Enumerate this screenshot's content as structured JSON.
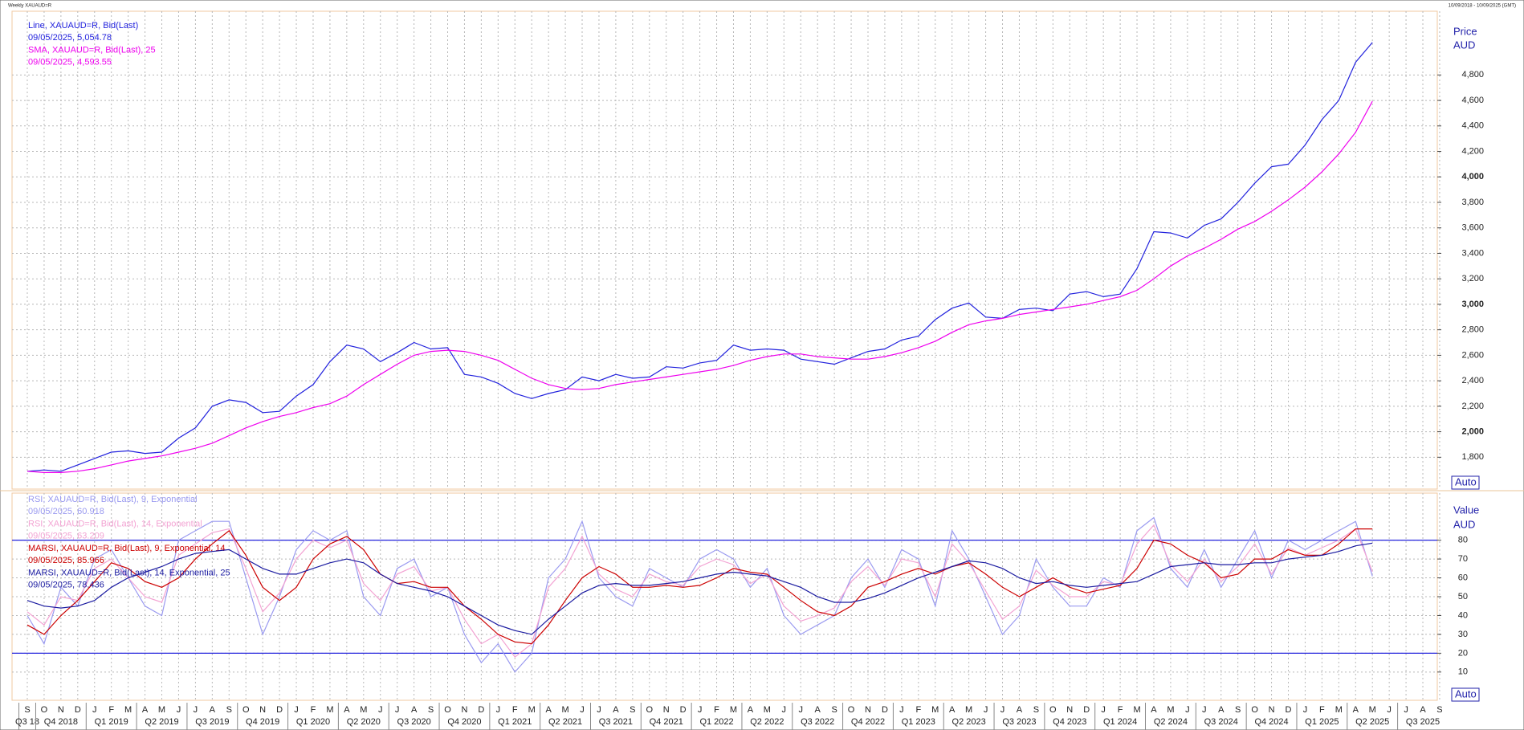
{
  "header": {
    "title": "Weekly XAUAUD=R",
    "range": "10/09/2018 - 10/09/2025 (GMT)"
  },
  "chart_data": {
    "type": "line",
    "y_axis_labels": [
      "Price",
      "AUD",
      "Auto"
    ],
    "y2_axis_labels": [
      "Value",
      "AUD",
      "Auto"
    ],
    "categories": [
      "S",
      "O",
      "N",
      "D",
      "J",
      "F",
      "M",
      "A",
      "M",
      "J",
      "J",
      "A",
      "S",
      "O",
      "N",
      "D",
      "J",
      "F",
      "M",
      "A",
      "M",
      "J",
      "J",
      "A",
      "S",
      "O",
      "N",
      "D",
      "J",
      "F",
      "M",
      "A",
      "M",
      "J",
      "J",
      "A",
      "S",
      "O",
      "N",
      "D",
      "J",
      "F",
      "M",
      "A",
      "M",
      "J",
      "J",
      "A",
      "S",
      "O",
      "N",
      "D",
      "J",
      "F",
      "M",
      "A",
      "M",
      "J",
      "J",
      "A",
      "S",
      "O",
      "N",
      "D",
      "J",
      "F",
      "M",
      "A",
      "M",
      "J",
      "J",
      "A",
      "S",
      "O",
      "N",
      "D",
      "J",
      "F",
      "M",
      "A",
      "M",
      "J",
      "J",
      "A",
      "S"
    ],
    "quarters": [
      "Q3 18",
      "Q4 2018",
      "Q1 2019",
      "Q2 2019",
      "Q3 2019",
      "Q4 2019",
      "Q1 2020",
      "Q2 2020",
      "Q3 2020",
      "Q4 2020",
      "Q1 2021",
      "Q2 2021",
      "Q3 2021",
      "Q4 2021",
      "Q1 2022",
      "Q2 2022",
      "Q3 2022",
      "Q4 2022",
      "Q1 2023",
      "Q2 2023",
      "Q3 2023",
      "Q4 2023",
      "Q1 2024",
      "Q2 2024",
      "Q3 2024",
      "Q4 2024",
      "Q1 2025",
      "Q2 2025",
      "Q3 2025"
    ],
    "ylim": [
      1550,
      5300
    ],
    "yticks": [
      {
        "value": 1800,
        "label": "1,800"
      },
      {
        "value": 2000,
        "label": "2,000"
      },
      {
        "value": 2200,
        "label": "2,200"
      },
      {
        "value": 2400,
        "label": "2,400"
      },
      {
        "value": 2600,
        "label": "2,600"
      },
      {
        "value": 2800,
        "label": "2,800"
      },
      {
        "value": 3000,
        "label": "3,000"
      },
      {
        "value": 3200,
        "label": "3,200"
      },
      {
        "value": 3400,
        "label": "3,400"
      },
      {
        "value": 3600,
        "label": "3,600"
      },
      {
        "value": 3800,
        "label": "3,800"
      },
      {
        "value": 4000,
        "label": "4,000"
      },
      {
        "value": 4200,
        "label": "4,200"
      },
      {
        "value": 4400,
        "label": "4,400"
      },
      {
        "value": 4600,
        "label": "4,600"
      },
      {
        "value": 4800,
        "label": "4,800"
      }
    ],
    "y2lim": [
      -5,
      105
    ],
    "y2ticks": [
      10,
      20,
      30,
      40,
      50,
      60,
      70,
      80
    ],
    "y2_lines": [
      80,
      20
    ],
    "grid": true,
    "series": [
      {
        "name": "Line, XAUAUD=R, Bid(Last)",
        "last_label": "09/05/2025, 5,054.78",
        "color": "#2222dd",
        "values": [
          1690,
          1700,
          1690,
          1740,
          1790,
          1840,
          1850,
          1830,
          1840,
          1950,
          2030,
          2200,
          2250,
          2230,
          2150,
          2160,
          2280,
          2370,
          2550,
          2680,
          2650,
          2550,
          2620,
          2700,
          2650,
          2660,
          2450,
          2430,
          2380,
          2300,
          2260,
          2300,
          2330,
          2430,
          2400,
          2450,
          2420,
          2430,
          2510,
          2500,
          2540,
          2560,
          2680,
          2640,
          2650,
          2640,
          2570,
          2550,
          2530,
          2580,
          2630,
          2650,
          2720,
          2750,
          2880,
          2970,
          3010,
          2900,
          2890,
          2960,
          2970,
          2950,
          3080,
          3100,
          3060,
          3080,
          3280,
          3570,
          3560,
          3520,
          3620,
          3670,
          3800,
          3950,
          4080,
          4100,
          4250,
          4450,
          4600,
          4900,
          5054.78,
          null,
          null,
          null,
          null
        ]
      },
      {
        "name": "SMA, XAUAUD=R, Bid(Last),  25",
        "last_label": "09/05/2025, 4,593.55",
        "color": "#ee00ee",
        "values": [
          1690,
          1680,
          1680,
          1690,
          1710,
          1740,
          1770,
          1790,
          1810,
          1840,
          1870,
          1910,
          1970,
          2030,
          2080,
          2120,
          2150,
          2190,
          2220,
          2280,
          2370,
          2450,
          2530,
          2600,
          2630,
          2640,
          2630,
          2600,
          2560,
          2490,
          2420,
          2370,
          2340,
          2330,
          2340,
          2370,
          2390,
          2410,
          2430,
          2450,
          2470,
          2490,
          2520,
          2560,
          2590,
          2610,
          2610,
          2590,
          2580,
          2570,
          2570,
          2590,
          2620,
          2660,
          2710,
          2780,
          2840,
          2870,
          2890,
          2920,
          2940,
          2960,
          2980,
          3000,
          3030,
          3060,
          3110,
          3200,
          3300,
          3380,
          3440,
          3510,
          3590,
          3650,
          3730,
          3820,
          3920,
          4040,
          4180,
          4350,
          4593.55,
          null,
          null,
          null,
          null
        ]
      },
      {
        "name": "RSI, XAUAUD=R, Bid(Last),  9, Exponential",
        "last_label": "09/05/2025, 60.918",
        "color": "#9a9af0",
        "axis": "y2",
        "values": [
          40,
          25,
          55,
          45,
          70,
          75,
          60,
          45,
          40,
          80,
          85,
          90,
          90,
          60,
          30,
          50,
          75,
          85,
          80,
          85,
          50,
          40,
          65,
          70,
          50,
          55,
          30,
          15,
          25,
          10,
          20,
          60,
          70,
          90,
          60,
          50,
          45,
          65,
          60,
          55,
          70,
          75,
          70,
          55,
          65,
          40,
          30,
          35,
          40,
          60,
          70,
          55,
          75,
          70,
          45,
          85,
          70,
          50,
          30,
          40,
          70,
          55,
          45,
          45,
          60,
          55,
          85,
          92,
          65,
          55,
          75,
          55,
          70,
          85,
          60,
          80,
          75,
          80,
          85,
          90,
          60.918,
          null,
          null,
          null,
          null
        ]
      },
      {
        "name": "RSI, XAUAUD=R, Bid(Last),  14, Exponential",
        "last_label": "09/05/2025, 63.209",
        "color": "#f3a3d3",
        "axis": "y2",
        "values": [
          42,
          35,
          50,
          48,
          65,
          70,
          60,
          50,
          47,
          72,
          78,
          84,
          86,
          65,
          42,
          52,
          70,
          80,
          76,
          80,
          57,
          48,
          62,
          66,
          53,
          55,
          38,
          25,
          30,
          18,
          25,
          55,
          65,
          82,
          62,
          54,
          50,
          62,
          58,
          56,
          66,
          70,
          67,
          57,
          62,
          45,
          37,
          40,
          44,
          58,
          66,
          56,
          70,
          68,
          50,
          78,
          68,
          53,
          38,
          45,
          64,
          56,
          50,
          50,
          58,
          56,
          78,
          88,
          67,
          58,
          70,
          58,
          66,
          78,
          62,
          76,
          72,
          76,
          80,
          86,
          63.209,
          null,
          null,
          null,
          null
        ]
      },
      {
        "name": "MARSI, XAUAUD=R, Bid(Last),  9, Exponential, 14",
        "last_label": "09/05/2025, 85.966",
        "color": "#cc0000",
        "axis": "y2",
        "values": [
          35,
          30,
          40,
          48,
          58,
          68,
          65,
          58,
          55,
          60,
          70,
          78,
          85,
          72,
          55,
          48,
          55,
          70,
          78,
          82,
          75,
          62,
          57,
          58,
          55,
          55,
          45,
          38,
          30,
          26,
          25,
          35,
          48,
          60,
          66,
          62,
          55,
          55,
          56,
          55,
          56,
          60,
          65,
          63,
          62,
          55,
          48,
          42,
          40,
          45,
          55,
          58,
          62,
          65,
          62,
          66,
          68,
          62,
          55,
          50,
          55,
          60,
          55,
          52,
          54,
          56,
          65,
          80,
          78,
          72,
          68,
          60,
          62,
          70,
          70,
          75,
          72,
          72,
          78,
          86,
          85.966,
          null,
          null,
          null,
          null
        ]
      },
      {
        "name": "MARSI, XAUAUD=R, Bid(Last),  14, Exponential, 25",
        "last_label": "09/05/2025, 78.436",
        "color": "#1a1aa0",
        "axis": "y2",
        "values": [
          48,
          45,
          44,
          45,
          48,
          55,
          60,
          63,
          66,
          70,
          73,
          74,
          75,
          70,
          65,
          62,
          62,
          65,
          68,
          70,
          68,
          62,
          57,
          55,
          53,
          50,
          45,
          40,
          35,
          32,
          30,
          38,
          45,
          52,
          56,
          57,
          56,
          56,
          57,
          58,
          60,
          62,
          63,
          62,
          61,
          58,
          55,
          50,
          47,
          47,
          49,
          52,
          56,
          60,
          63,
          66,
          69,
          68,
          65,
          60,
          57,
          58,
          56,
          55,
          56,
          57,
          58,
          62,
          66,
          67,
          68,
          67,
          67,
          68,
          68,
          70,
          71,
          72,
          74,
          77,
          78.436,
          null,
          null,
          null,
          null
        ]
      }
    ]
  }
}
